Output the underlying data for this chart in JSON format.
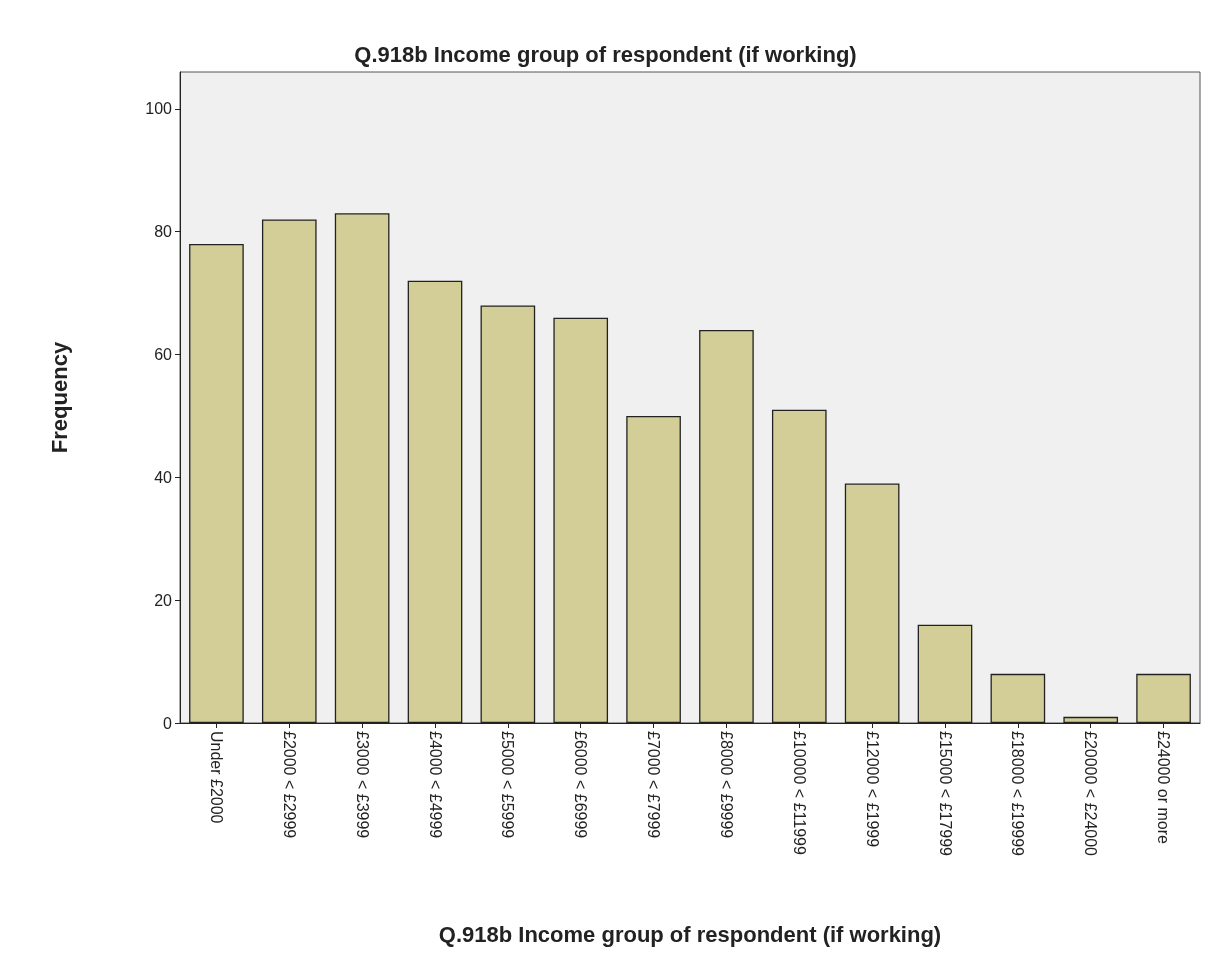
{
  "chart_data": {
    "type": "bar",
    "title": "Q.918b Income group of respondent (if working)",
    "xlabel": "Q.918b Income group of respondent (if working)",
    "ylabel": "Frequency",
    "categories": [
      "Under £2000",
      "£2000 < £2999",
      "£3000 < £3999",
      "£4000 < £4999",
      "£5000 < £5999",
      "£6000 < £6999",
      "£7000 < £7999",
      "£8000 < £9999",
      "£10000 < £11999",
      "£12000 < £1999",
      "£15000 < £17999",
      "£18000 < £19999",
      "£20000 < £24000",
      "£24000 or more"
    ],
    "values": [
      78,
      82,
      83,
      72,
      68,
      66,
      50,
      64,
      51,
      39,
      16,
      8,
      1,
      8
    ],
    "color": "#d3ce97",
    "ylim": [
      0,
      106
    ],
    "yticks": [
      0,
      20,
      40,
      60,
      80,
      100
    ],
    "grid": false
  }
}
